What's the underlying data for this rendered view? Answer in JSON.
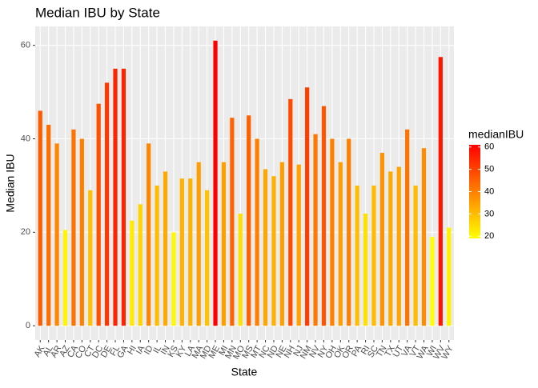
{
  "chart_data": {
    "type": "bar",
    "title": "Median IBU by State",
    "x_label": "State",
    "y_label": "Median IBU",
    "categories": [
      "AK",
      "AL",
      "AR",
      "AZ",
      "CA",
      "CO",
      "CT",
      "DC",
      "DE",
      "FL",
      "GA",
      "HI",
      "IA",
      "ID",
      "IL",
      "IN",
      "KS",
      "KY",
      "LA",
      "MA",
      "MD",
      "ME",
      "MI",
      "MN",
      "MO",
      "MS",
      "MT",
      "NC",
      "ND",
      "NE",
      "NH",
      "NJ",
      "NM",
      "NV",
      "NY",
      "OH",
      "OK",
      "OR",
      "PA",
      "RI",
      "SC",
      "TN",
      "TX",
      "UT",
      "VA",
      "VT",
      "WA",
      "WI",
      "WV",
      "WY"
    ],
    "values": [
      46,
      43,
      39,
      20.5,
      42,
      40,
      29,
      47.5,
      52,
      55,
      55,
      22.5,
      26,
      39,
      30,
      33,
      20,
      31.5,
      31.5,
      35,
      29,
      61,
      35,
      44.5,
      24,
      45,
      40,
      33.5,
      32,
      35,
      48.5,
      34.5,
      51,
      41,
      47,
      40,
      35,
      40,
      30,
      24,
      30,
      37,
      33,
      34,
      42,
      30,
      38,
      19,
      57.5,
      21
    ],
    "ylim": [
      -3.05,
      64.05
    ],
    "yticks": [
      0,
      20,
      40,
      60
    ],
    "grid": true,
    "legend": {
      "title": "medianIBU",
      "ticks": [
        20,
        30,
        40,
        50,
        60
      ],
      "low_color": "#FFFF00",
      "high_color": "#FF0000"
    }
  }
}
